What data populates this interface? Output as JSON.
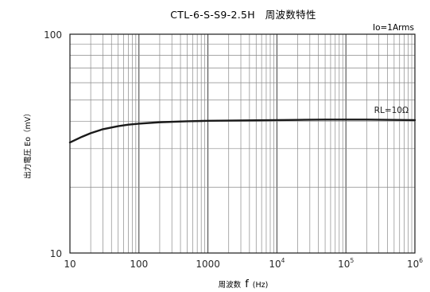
{
  "chart_data": {
    "type": "line",
    "title": "CTL-6-S-S9-2.5H　周波数特性",
    "condition": "Io=1Arms",
    "xlabel": {
      "prefix": "周波数",
      "symbol": "f",
      "unit": "(Hz)"
    },
    "ylabel": "出力電圧 Eo（mV）",
    "x_scale": "log",
    "y_scale": "log",
    "xlim": [
      10,
      1000000
    ],
    "ylim": [
      10,
      100
    ],
    "grid": true,
    "x_ticks": [
      {
        "value": 10,
        "label": "10",
        "exp": ""
      },
      {
        "value": 100,
        "label": "100",
        "exp": ""
      },
      {
        "value": 1000,
        "label": "1000",
        "exp": ""
      },
      {
        "value": 10000,
        "label": "10",
        "exp": "4"
      },
      {
        "value": 100000,
        "label": "10",
        "exp": "5"
      },
      {
        "value": 1000000,
        "label": "10",
        "exp": "6"
      }
    ],
    "y_ticks": [
      {
        "value": 10,
        "label": "10"
      },
      {
        "value": 100,
        "label": "100"
      }
    ],
    "series": [
      {
        "name": "RL=10Ω",
        "color": "#1a1a1a",
        "x": [
          10,
          15,
          20,
          30,
          50,
          70,
          100,
          200,
          500,
          1000,
          2000,
          5000,
          10000,
          20000,
          50000,
          100000,
          200000,
          500000,
          1000000
        ],
        "y": [
          32.0,
          34.0,
          35.3,
          36.8,
          38.0,
          38.6,
          39.0,
          39.6,
          40.0,
          40.2,
          40.3,
          40.4,
          40.5,
          40.6,
          40.7,
          40.7,
          40.7,
          40.6,
          40.5
        ]
      }
    ]
  }
}
